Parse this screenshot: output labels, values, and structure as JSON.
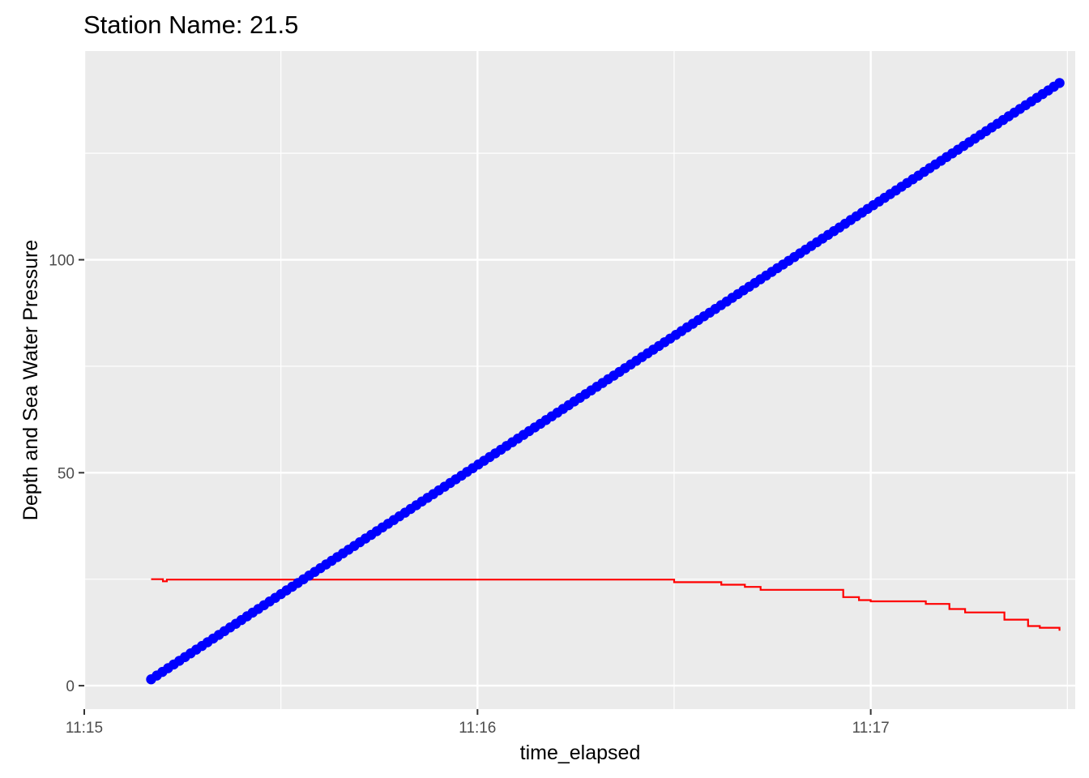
{
  "chart_data": {
    "type": "scatter",
    "title": "Station Name: 21.5",
    "xlabel": "time_elapsed",
    "ylabel": "Depth and Sea Water Pressure",
    "x_unit": "minutes after 11:15",
    "xlim": [
      0.0,
      2.52
    ],
    "ylim": [
      -5.5,
      149
    ],
    "x_ticks": [
      {
        "value": 0,
        "label": "11:15"
      },
      {
        "value": 1,
        "label": "11:16"
      },
      {
        "value": 2,
        "label": "11:17"
      }
    ],
    "y_ticks": [
      {
        "value": 0,
        "label": "0"
      },
      {
        "value": 50,
        "label": "50"
      },
      {
        "value": 100,
        "label": "100"
      }
    ],
    "grid": true,
    "legend": "none",
    "colors": {
      "panel_background": "#EBEBEB",
      "grid": "#FFFFFF",
      "points": "#0000FF",
      "line": "#FF0000"
    },
    "series": [
      {
        "kind": "points",
        "color": "#0000FF",
        "x_start": 0.17,
        "x_end": 2.48,
        "y_start": 1.5,
        "y_end": 141.5,
        "n_points": 162
      },
      {
        "kind": "step-line",
        "color": "#FF0000",
        "x": [
          0.17,
          0.2,
          0.21,
          1.45,
          1.5,
          1.62,
          1.68,
          1.72,
          1.93,
          1.97,
          2.0,
          2.14,
          2.2,
          2.24,
          2.34,
          2.4,
          2.43,
          2.48
        ],
        "y": [
          25.0,
          24.5,
          24.9,
          24.9,
          24.3,
          23.7,
          23.2,
          22.5,
          20.8,
          20.1,
          19.8,
          19.2,
          18.0,
          17.2,
          15.5,
          14.0,
          13.6,
          12.9
        ]
      }
    ]
  }
}
